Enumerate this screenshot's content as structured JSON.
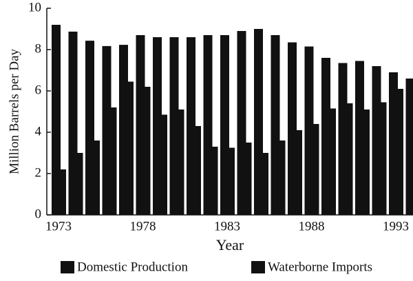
{
  "chart_data": {
    "type": "bar",
    "y_label": "Million Barrels per Day",
    "x_label": "Year",
    "categories": [
      "1973",
      null,
      null,
      null,
      null,
      "1978",
      null,
      null,
      null,
      null,
      "1983",
      null,
      null,
      null,
      null,
      "1988",
      null,
      null,
      null,
      null,
      "1993",
      null
    ],
    "series": [
      {
        "name": "Domestic Production",
        "color": "#111111",
        "values": [
          9.2,
          8.87,
          8.43,
          8.17,
          8.23,
          8.7,
          8.6,
          8.6,
          8.6,
          8.7,
          8.7,
          8.9,
          9.0,
          8.7,
          8.35,
          8.15,
          7.6,
          7.35,
          7.45,
          7.2,
          6.9,
          6.6
        ]
      },
      {
        "name": "Waterborne Imports",
        "color": "#111111",
        "values": [
          2.2,
          3.0,
          3.6,
          5.2,
          6.45,
          6.2,
          4.85,
          5.1,
          4.3,
          3.3,
          3.25,
          3.5,
          3.0,
          3.6,
          4.1,
          4.4,
          5.15,
          5.4,
          5.1,
          5.45,
          6.1,
          null
        ]
      }
    ],
    "ylim": [
      0,
      10
    ],
    "yticks": [
      0,
      2,
      4,
      6,
      8,
      10
    ]
  }
}
